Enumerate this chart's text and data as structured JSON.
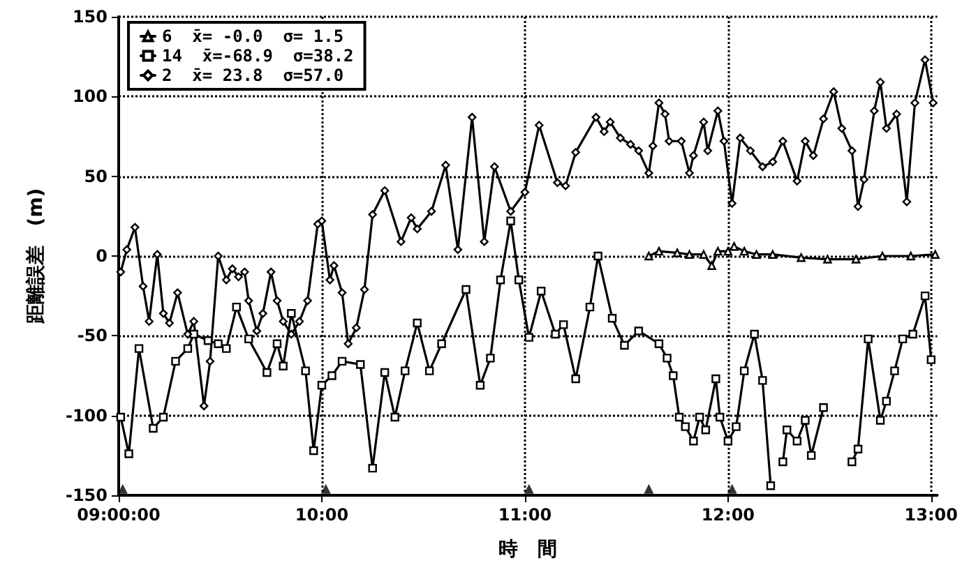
{
  "chart_data": {
    "type": "line",
    "xlabel": "時　間",
    "ylabel": "距離誤差　(m)",
    "xlim": [
      9,
      13.03
    ],
    "xticks": [
      {
        "value": 9,
        "label": "09:00:00"
      },
      {
        "value": 10,
        "label": "10:00"
      },
      {
        "value": 11,
        "label": "11:00"
      },
      {
        "value": 12,
        "label": "12:00"
      },
      {
        "value": 13,
        "label": "13:00"
      }
    ],
    "ylim": [
      -150,
      150
    ],
    "yticks": [
      -150,
      -100,
      -50,
      0,
      50,
      100,
      150
    ],
    "grid": true,
    "legend": "top left",
    "line_style": "solid",
    "series": [
      {
        "name": "6  x̄= -0.0  σ= 1.5",
        "color": "#000000",
        "marker": "triangle",
        "x": [
          11.61,
          11.66,
          11.75,
          11.81,
          11.88,
          11.92,
          11.95,
          12.0,
          12.03,
          12.08,
          12.14,
          12.22,
          12.36,
          12.49,
          12.63,
          12.76,
          12.9,
          13.02
        ],
        "values": [
          0,
          3,
          2,
          1,
          1,
          -6,
          3,
          3,
          6,
          3,
          1,
          1,
          -1,
          -2,
          -2,
          0,
          0,
          1
        ]
      },
      {
        "name": "14  x̄=-68.9  σ=38.2",
        "color": "#000000",
        "marker": "square",
        "x": [
          9.01,
          9.05,
          9.1,
          9.17,
          9.22,
          9.28,
          9.34,
          9.37,
          9.44,
          9.49,
          9.53,
          9.58,
          9.64,
          9.73,
          9.78,
          9.81,
          9.85,
          9.92,
          9.96,
          10.0,
          10.05,
          10.1,
          10.19,
          10.25,
          10.31,
          10.36,
          10.41,
          10.47,
          10.53,
          10.59,
          10.71,
          10.78,
          10.83,
          10.88,
          10.93,
          10.97,
          11.02,
          11.08,
          11.15,
          11.19,
          11.25,
          11.32,
          11.36,
          11.43,
          11.49,
          11.56,
          11.66,
          11.7,
          11.73,
          11.76,
          11.79,
          11.83,
          11.86,
          11.89,
          11.94,
          11.96,
          12.0,
          12.04,
          12.08,
          12.13,
          12.17,
          12.21,
          12.23,
          12.27,
          12.29,
          12.34,
          12.38,
          12.41,
          12.47,
          12.53,
          12.57,
          12.61,
          12.64,
          12.69,
          12.75,
          12.78,
          12.82,
          12.86,
          12.91,
          12.97,
          13.0
        ],
        "values": [
          -101,
          -124,
          -58,
          -108,
          -101,
          -66,
          -58,
          -49,
          -53,
          -55,
          -58,
          -32,
          -52,
          -73,
          -55,
          -69,
          -36,
          -72,
          -122,
          -81,
          -75,
          -66,
          -68,
          -133,
          -73,
          -101,
          -72,
          -42,
          -72,
          -55,
          -21,
          -81,
          -64,
          -15,
          22,
          -15,
          -51,
          -22,
          -49,
          -43,
          -77,
          -32,
          0,
          -39,
          -56,
          -47,
          -55,
          -64,
          -75,
          -101,
          -107,
          -116,
          -101,
          -109,
          -77,
          -101,
          -116,
          -107,
          -72,
          -49,
          -78,
          -144,
          null,
          -129,
          -109,
          -116,
          -103,
          -125,
          -95,
          null,
          null,
          -129,
          -121,
          -52,
          -103,
          -91,
          -72,
          -52,
          -49,
          -25,
          -65
        ]
      },
      {
        "name": "2  x̄= 23.8  σ=57.0",
        "color": "#000000",
        "marker": "diamond",
        "x": [
          9.01,
          9.04,
          9.08,
          9.12,
          9.15,
          9.19,
          9.22,
          9.25,
          9.29,
          9.34,
          9.37,
          9.42,
          9.45,
          9.49,
          9.53,
          9.56,
          9.59,
          9.62,
          9.64,
          9.68,
          9.71,
          9.75,
          9.78,
          9.81,
          9.85,
          9.89,
          9.93,
          9.98,
          10.0,
          10.04,
          10.06,
          10.1,
          10.13,
          10.17,
          10.21,
          10.25,
          10.31,
          10.39,
          10.44,
          10.47,
          10.54,
          10.61,
          10.67,
          10.74,
          10.8,
          10.85,
          10.93,
          11.0,
          11.07,
          11.16,
          11.2,
          11.25,
          11.35,
          11.39,
          11.42,
          11.47,
          11.52,
          11.56,
          11.61,
          11.63,
          11.66,
          11.69,
          11.71,
          11.77,
          11.81,
          11.83,
          11.88,
          11.9,
          11.95,
          11.98,
          12.02,
          12.06,
          12.11,
          12.17,
          12.22,
          12.27,
          12.34,
          12.38,
          12.42,
          12.47,
          12.52,
          12.56,
          12.61,
          12.64,
          12.67,
          12.72,
          12.75,
          12.78,
          12.83,
          12.88,
          12.92,
          12.97,
          13.01
        ],
        "values": [
          -10,
          4,
          18,
          -19,
          -41,
          1,
          -36,
          -42,
          -23,
          -49,
          -41,
          -94,
          -66,
          0,
          -15,
          -8,
          -13,
          -10,
          -28,
          -47,
          -36,
          -10,
          -28,
          -41,
          -49,
          -41,
          -28,
          20,
          22,
          -15,
          -6,
          -23,
          -55,
          -45,
          -21,
          26,
          41,
          9,
          24,
          17,
          28,
          57,
          4,
          87,
          9,
          56,
          28,
          40,
          82,
          46,
          44,
          65,
          87,
          78,
          84,
          74,
          70,
          66,
          52,
          69,
          96,
          89,
          72,
          72,
          52,
          63,
          84,
          66,
          91,
          72,
          33,
          74,
          66,
          56,
          59,
          72,
          47,
          72,
          63,
          86,
          103,
          80,
          66,
          31,
          48,
          91,
          109,
          80,
          89,
          34,
          96,
          123,
          96
        ]
      },
      {
        "color": "#000000",
        "type": "scatter",
        "marker": "triangle",
        "x": [
          9.02,
          10.02,
          11.02,
          11.61,
          12.02
        ],
        "values": [
          -146,
          -146,
          -146,
          -146,
          -146
        ]
      }
    ]
  }
}
